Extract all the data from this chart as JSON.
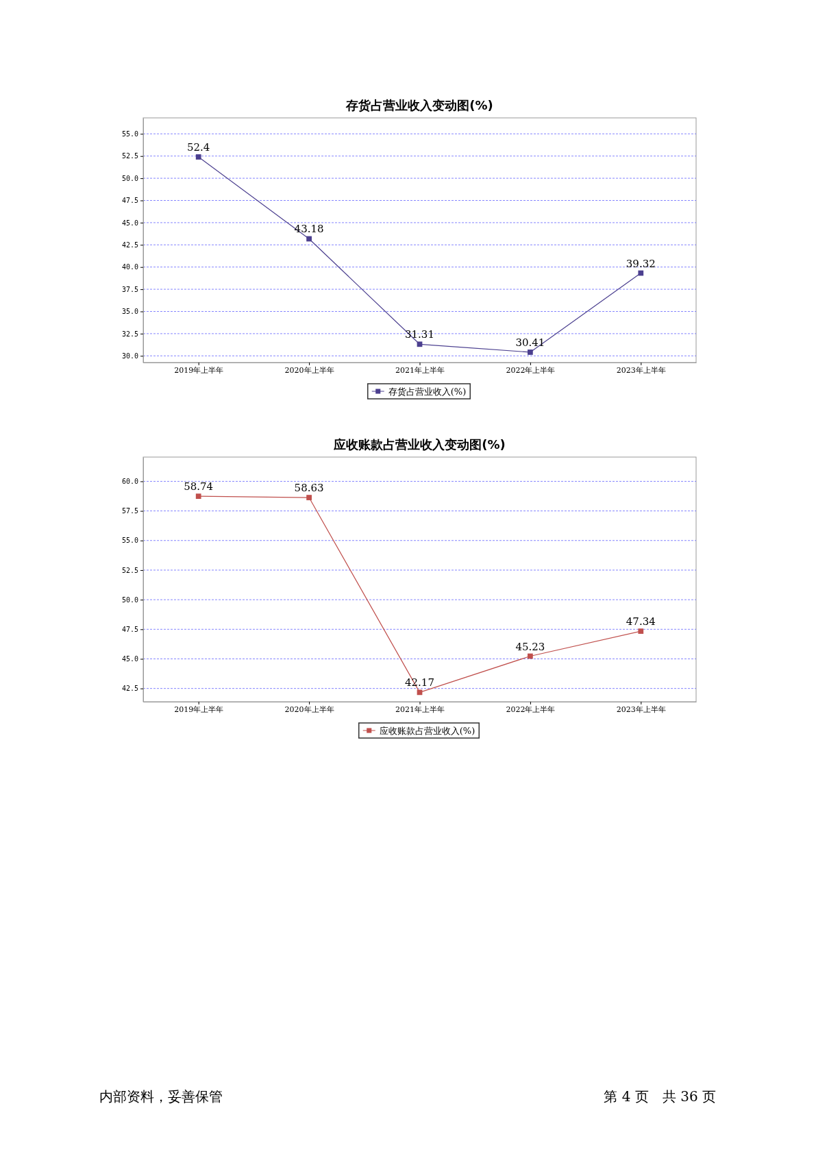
{
  "chart_data": [
    {
      "type": "line",
      "title": "存货占营业收入变动图(%)",
      "categories": [
        "2019年上半年",
        "2020年上半年",
        "2021年上半年",
        "2022年上半年",
        "2023年上半年"
      ],
      "series": [
        {
          "name": "存货占营业收入(%)",
          "color": "#4b3f8f",
          "values": [
            52.4,
            43.18,
            31.31,
            30.41,
            39.32
          ]
        }
      ],
      "ylim": [
        29.25,
        56.8
      ],
      "yticks": [
        {
          "value": 30,
          "label": "30.0"
        },
        {
          "value": 32.5,
          "label": "32.5"
        },
        {
          "value": 35,
          "label": "35.0"
        },
        {
          "value": 37.5,
          "label": "37.5"
        },
        {
          "value": 40,
          "label": "40.0"
        },
        {
          "value": 42.5,
          "label": "42.5"
        },
        {
          "value": 45,
          "label": "45.0"
        },
        {
          "value": 47.5,
          "label": "47.5"
        },
        {
          "value": 50,
          "label": "50.0"
        },
        {
          "value": 52.5,
          "label": "52.5"
        },
        {
          "value": 55,
          "label": "55.0"
        }
      ],
      "grid": "y",
      "legend": "bottom",
      "marker": "square",
      "line_style": "solid",
      "data_labels": true
    },
    {
      "type": "line",
      "title": "应收账款占营业收入变动图(%)",
      "categories": [
        "2019年上半年",
        "2020年上半年",
        "2021年上半年",
        "2022年上半年",
        "2023年上半年"
      ],
      "series": [
        {
          "name": "应收账款占营业收入(%)",
          "color": "#c0504d",
          "values": [
            58.74,
            58.63,
            42.17,
            45.23,
            47.34
          ]
        }
      ],
      "ylim": [
        41.38,
        62.05
      ],
      "yticks": [
        {
          "value": 42.5,
          "label": "42.5"
        },
        {
          "value": 45,
          "label": "45.0"
        },
        {
          "value": 47.5,
          "label": "47.5"
        },
        {
          "value": 50,
          "label": "50.0"
        },
        {
          "value": 52.5,
          "label": "52.5"
        },
        {
          "value": 55,
          "label": "55.0"
        },
        {
          "value": 57.5,
          "label": "57.5"
        },
        {
          "value": 60,
          "label": "60.0"
        }
      ],
      "grid": "y",
      "legend": "bottom",
      "marker": "square",
      "line_style": "solid",
      "data_labels": true,
      "annotations": [
        "内部资料，妥善保管",
        "第 4 页　共 36 页"
      ]
    }
  ]
}
